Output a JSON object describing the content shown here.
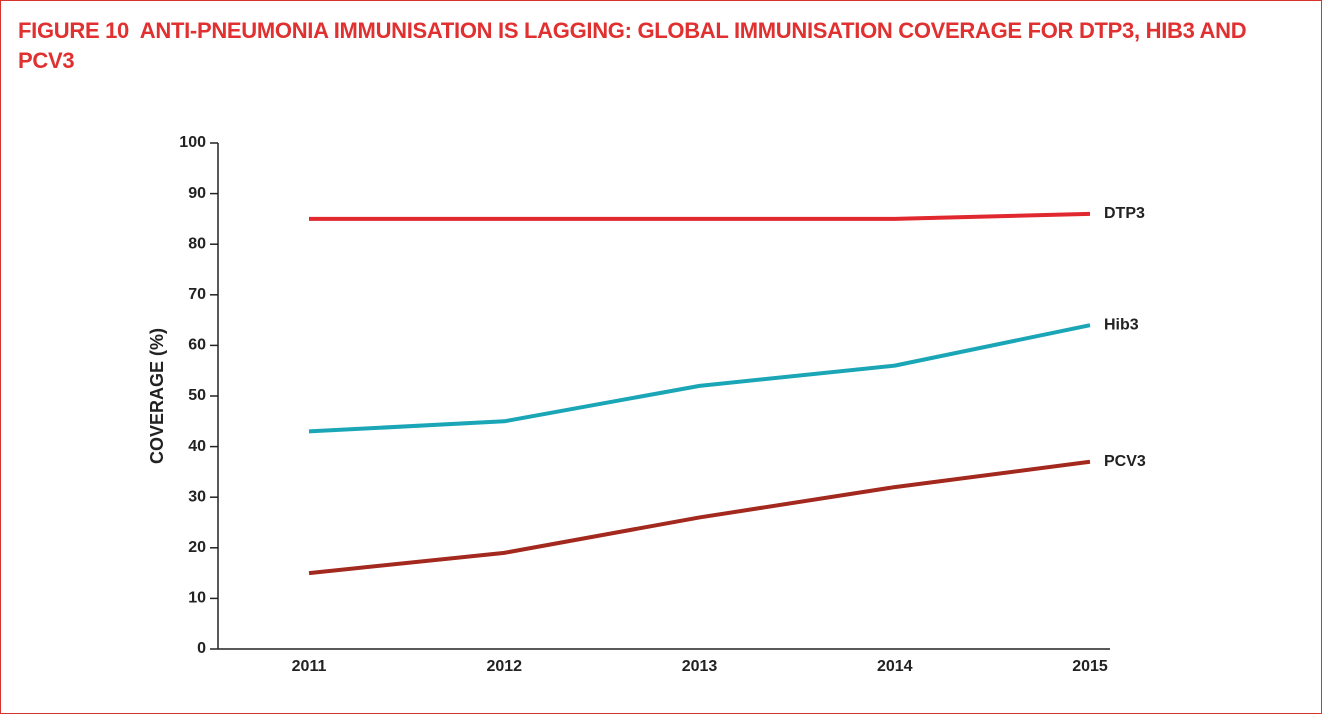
{
  "chart_data": {
    "type": "line",
    "title": "FIGURE 10  ANTI-PNEUMONIA IMMUNISATION IS LAGGING: GLOBAL IMMUNISATION COVERAGE FOR DTP3, HIB3 AND PCV3",
    "y_label": "COVERAGE (%)",
    "categories": [
      "2011",
      "2012",
      "2013",
      "2014",
      "2015"
    ],
    "series": [
      {
        "name": "DTP3",
        "color": "#e0282e",
        "values": [
          85,
          85,
          85,
          85,
          86
        ]
      },
      {
        "name": "Hib3",
        "color": "#1aa6b7",
        "values": [
          43,
          45,
          52,
          56,
          64
        ]
      },
      {
        "name": "PCV3",
        "color": "#a3281e",
        "values": [
          15,
          19,
          26,
          32,
          37
        ]
      }
    ],
    "ylim": [
      0,
      100
    ],
    "yticks": [
      0,
      10,
      20,
      30,
      40,
      50,
      60,
      70,
      80,
      90,
      100
    ]
  }
}
